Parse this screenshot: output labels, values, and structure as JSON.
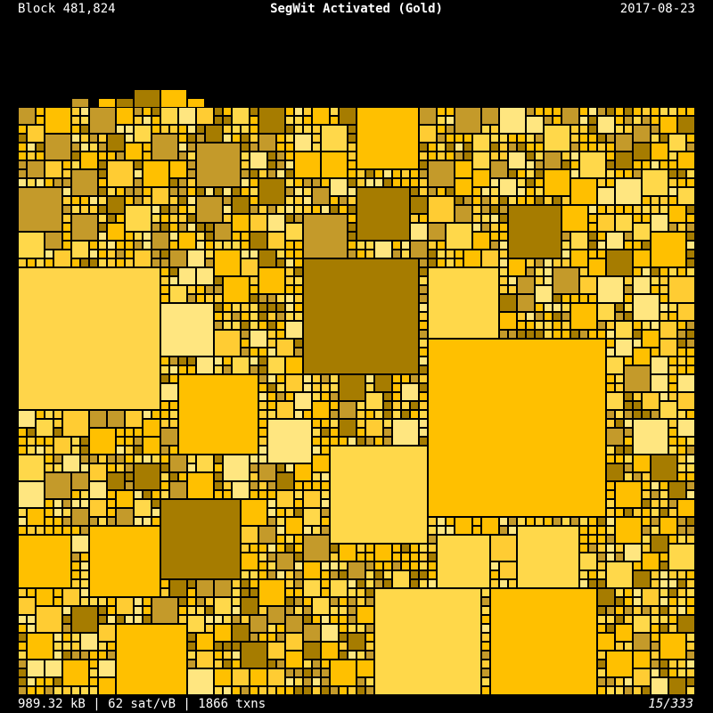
{
  "header": {
    "block": "Block 481,824",
    "title": "SegWit Activated (Gold)",
    "date": "2017-08-23"
  },
  "footer": {
    "stats": "989.32 kB | 62 sat/vB | 1866 txns",
    "page": "15/333"
  }
}
